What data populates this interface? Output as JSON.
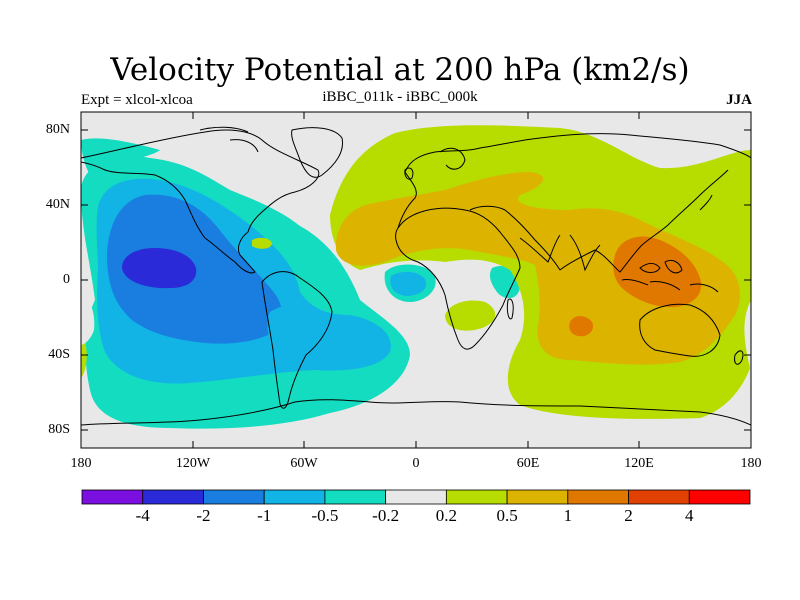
{
  "title": "Velocity Potential at 200 hPa (km2/s)",
  "subtitle_left": "Expt = xlcol-xlcoa",
  "subtitle_center": "iBBC_011k - iBBC_000k",
  "subtitle_right": "JJA",
  "y_ticks": [
    "80N",
    "40N",
    "0",
    "40S",
    "80S"
  ],
  "x_ticks": [
    "180",
    "120W",
    "60W",
    "0",
    "60E",
    "120E",
    "180"
  ],
  "colorbar": {
    "colors": [
      "#7a0fe0",
      "#2a2ad8",
      "#1a7ee0",
      "#12b4e6",
      "#14dcc0",
      "#e8e8e8",
      "#b6dc00",
      "#dcb400",
      "#e07800",
      "#e04000",
      "#ff0000"
    ],
    "labels": [
      "-4",
      "-2",
      "-1",
      "-0.5",
      "-0.2",
      "0.2",
      "0.5",
      "1",
      "2",
      "4"
    ]
  },
  "colors": {
    "ocean_land_background": "#e8e8e8",
    "coastline": "#000000"
  }
}
